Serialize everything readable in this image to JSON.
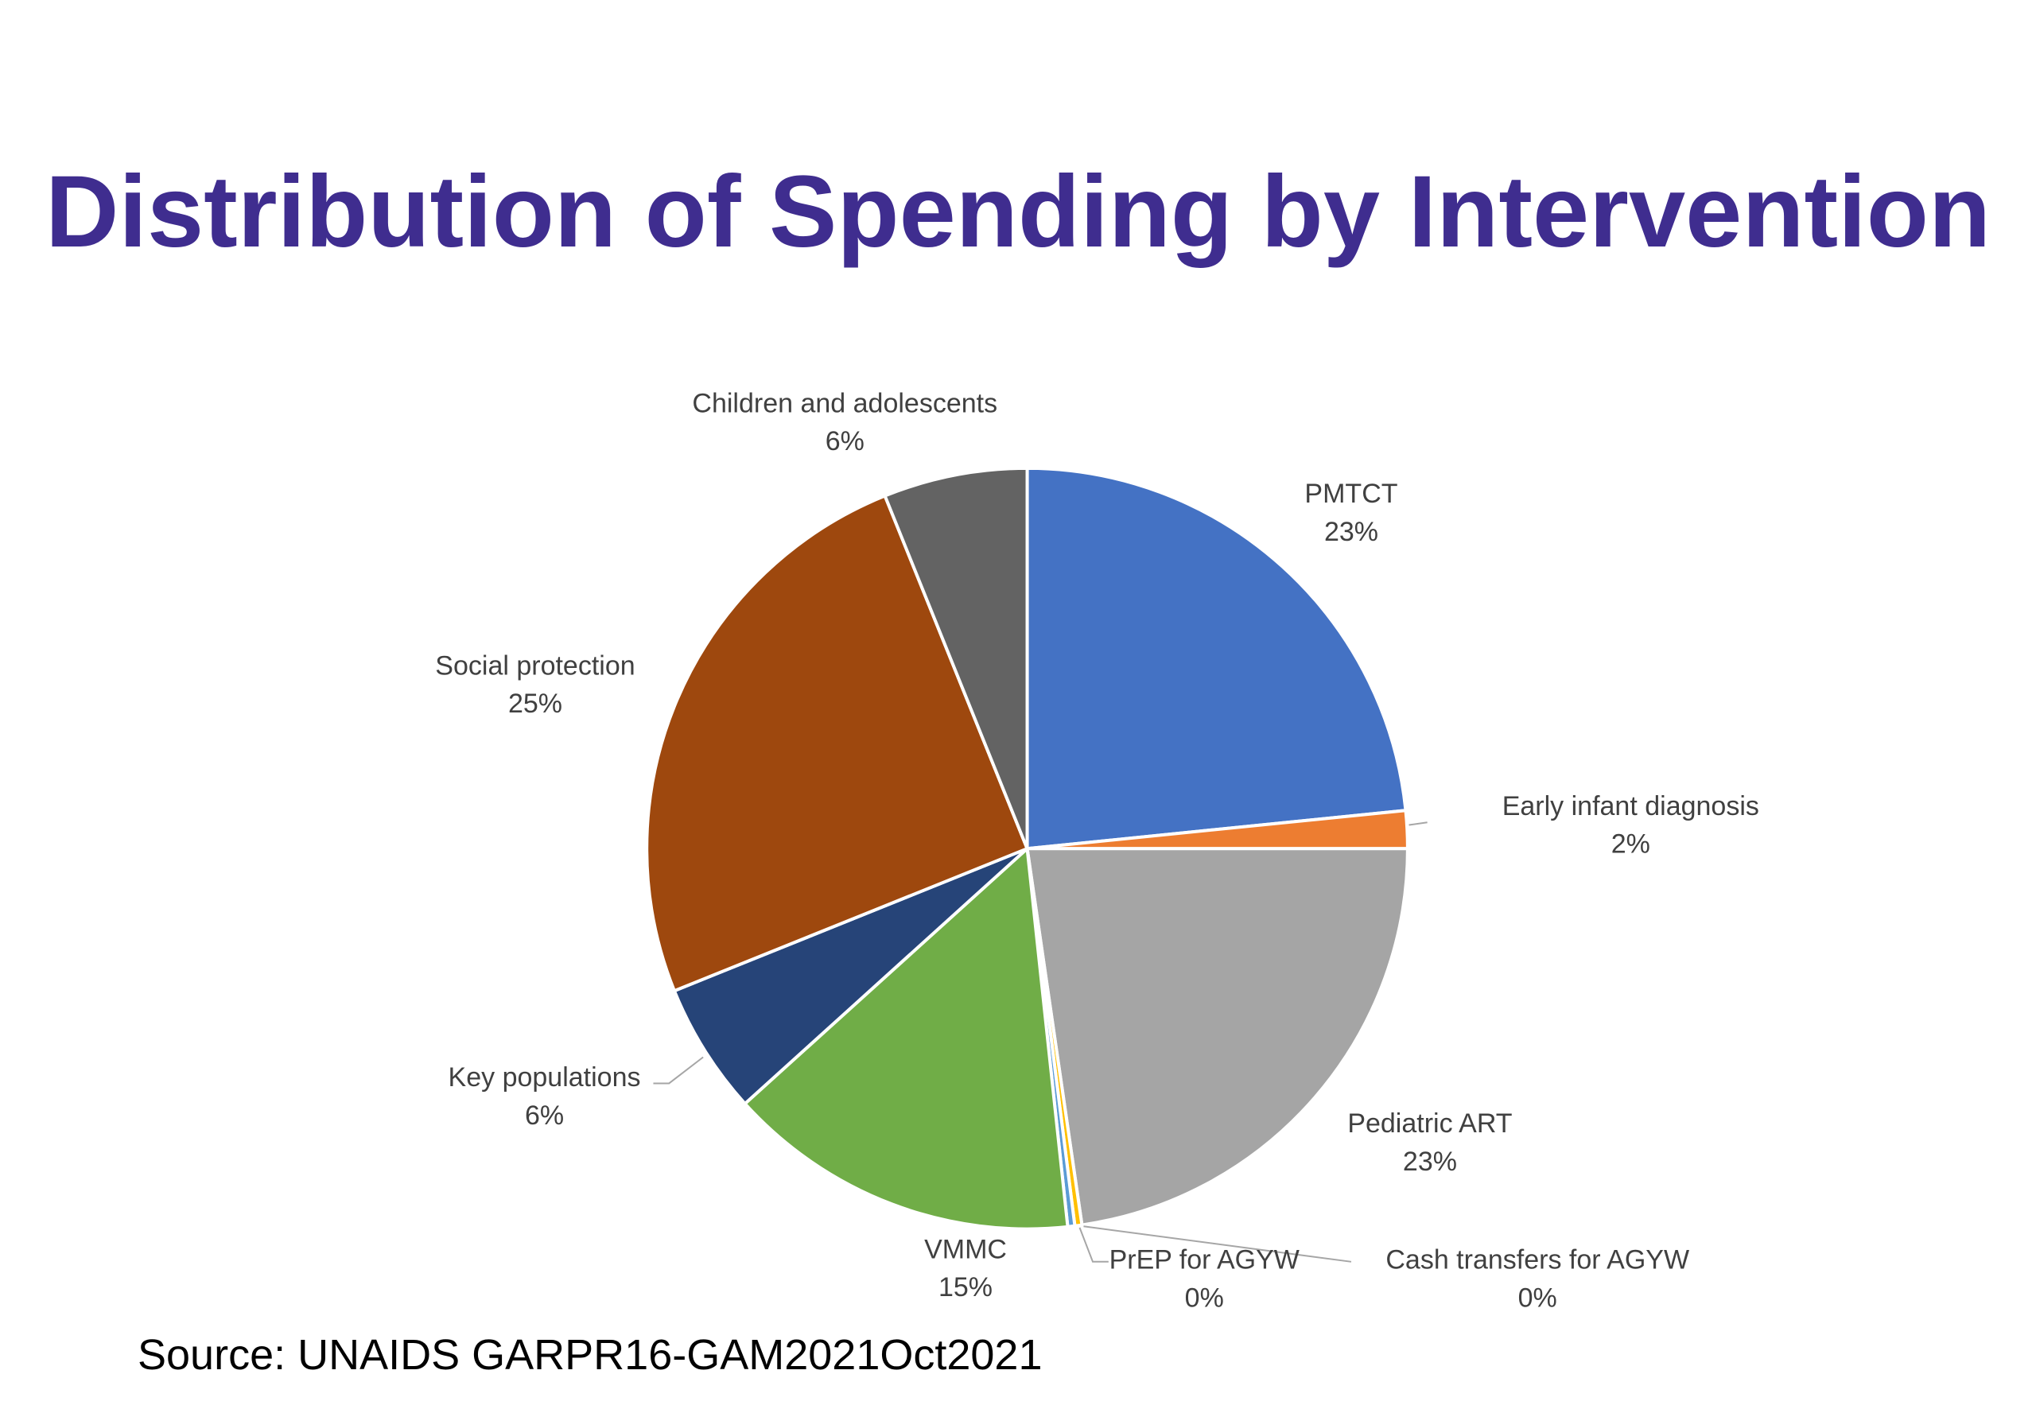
{
  "chart_data": {
    "type": "pie",
    "title": "Distribution of Spending by Intervention",
    "categories": [
      "PMTCT",
      "Early infant diagnosis",
      "Pediatric ART",
      "Cash transfers for AGYW",
      "PrEP for AGYW",
      "VMMC",
      "Key populations",
      "Social protection",
      "Children and adolescents"
    ],
    "values": [
      23.4,
      1.6,
      22.7,
      0.3,
      0.3,
      15.0,
      5.6,
      25.0,
      6.1
    ],
    "value_labels": [
      "23%",
      "2%",
      "23%",
      "0%",
      "0%",
      "15%",
      "6%",
      "25%",
      "6%"
    ],
    "colors": [
      "#4472c4",
      "#ed7d31",
      "#a5a5a5",
      "#ffc000",
      "#5b9bd5",
      "#70ad47",
      "#264478",
      "#9e480e",
      "#636363"
    ],
    "source": "Source: UNAIDS GARPR16-GAM2021Oct2021"
  }
}
